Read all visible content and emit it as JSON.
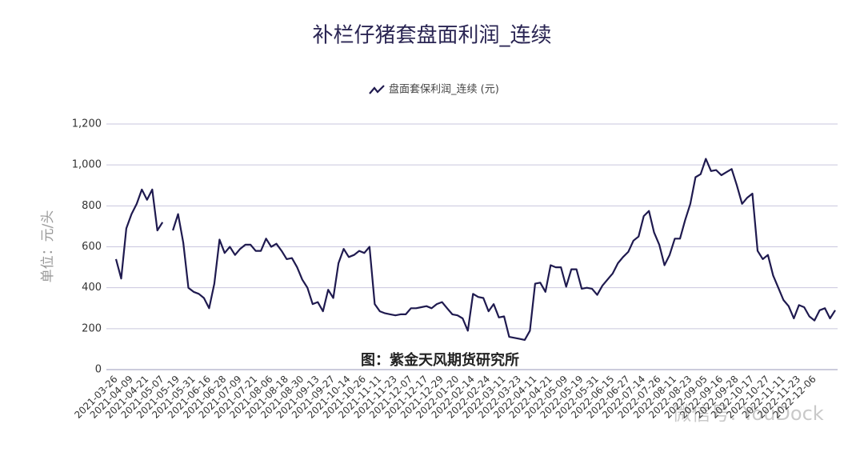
{
  "chart_data": {
    "type": "line",
    "title": "补栏仔猪套盘面利润_连续",
    "y_label": "单位：元/头",
    "annotation": "图：紫金天风期货研究所",
    "watermark": "微信号: YouDock",
    "categories": [
      "2021-03-26",
      null,
      null,
      "2021-04-09",
      null,
      null,
      "2021-04-21",
      null,
      null,
      "2021-05-07",
      null,
      null,
      "2021-05-19",
      null,
      null,
      "2021-05-31",
      null,
      null,
      "2021-06-16",
      null,
      null,
      "2021-06-28",
      null,
      null,
      "2021-07-09",
      null,
      null,
      "2021-07-21",
      null,
      null,
      "2021-08-06",
      null,
      null,
      "2021-08-18",
      null,
      null,
      "2021-08-30",
      null,
      null,
      "2021-09-13",
      null,
      null,
      "2021-09-27",
      null,
      null,
      "2021-10-14",
      null,
      null,
      "2021-10-26",
      null,
      null,
      "2021-11-11",
      null,
      null,
      "2021-11-23",
      null,
      null,
      "2021-12-07",
      null,
      null,
      "2021-12-17",
      null,
      null,
      "2021-12-29",
      null,
      null,
      "2022-01-20",
      null,
      null,
      "2022-02-14",
      null,
      null,
      "2022-02-24",
      null,
      null,
      "2022-03-11",
      null,
      null,
      "2022-03-23",
      null,
      null,
      "2022-04-11",
      null,
      null,
      "2022-04-21",
      null,
      null,
      "2022-05-09",
      null,
      null,
      "2022-05-19",
      null,
      null,
      "2022-05-31",
      null,
      null,
      "2022-06-15",
      null,
      null,
      "2022-06-27",
      null,
      null,
      "2022-07-14",
      null,
      null,
      "2022-07-26",
      null,
      null,
      "2022-08-11",
      null,
      null,
      "2022-08-23",
      null,
      null,
      "2022-09-05",
      null,
      null,
      "2022-09-16",
      null,
      null,
      "2022-09-28",
      null,
      null,
      "2022-10-17",
      null,
      null,
      "2022-10-27",
      null,
      null,
      "2022-11-11",
      null,
      null,
      "2022-11-23",
      null,
      null,
      "2022-12-06",
      null,
      null,
      null,
      null
    ],
    "series": [
      {
        "name": "盘面套保利润_连续 (元)",
        "color": "#1f1a4f",
        "values": [
          540,
          445,
          690,
          760,
          810,
          880,
          830,
          880,
          680,
          720,
          null,
          680,
          760,
          620,
          400,
          380,
          370,
          350,
          300,
          420,
          635,
          570,
          600,
          560,
          590,
          610,
          610,
          580,
          580,
          640,
          600,
          615,
          580,
          540,
          545,
          500,
          440,
          400,
          320,
          330,
          285,
          390,
          350,
          520,
          590,
          550,
          560,
          580,
          570,
          600,
          320,
          285,
          275,
          270,
          265,
          270,
          270,
          300,
          300,
          305,
          310,
          300,
          320,
          330,
          300,
          270,
          265,
          250,
          190,
          370,
          355,
          350,
          285,
          320,
          255,
          260,
          160,
          155,
          150,
          145,
          190,
          420,
          425,
          380,
          510,
          500,
          500,
          405,
          490,
          490,
          395,
          400,
          395,
          365,
          410,
          440,
          470,
          520,
          550,
          575,
          630,
          650,
          750,
          775,
          670,
          610,
          510,
          560,
          640,
          640,
          730,
          810,
          940,
          955,
          1030,
          970,
          975,
          950,
          965,
          980,
          900,
          810,
          840,
          860,
          580,
          540,
          560,
          460,
          400,
          340,
          310,
          250,
          315,
          305,
          260,
          240,
          290,
          300,
          250,
          290
        ]
      }
    ],
    "ylim": [
      0,
      1200
    ],
    "yticks": [
      0,
      200,
      400,
      600,
      800,
      {
        "value": 1000,
        "label": "1,000"
      },
      {
        "value": 1200,
        "label": "1,200"
      }
    ],
    "grid": true
  }
}
